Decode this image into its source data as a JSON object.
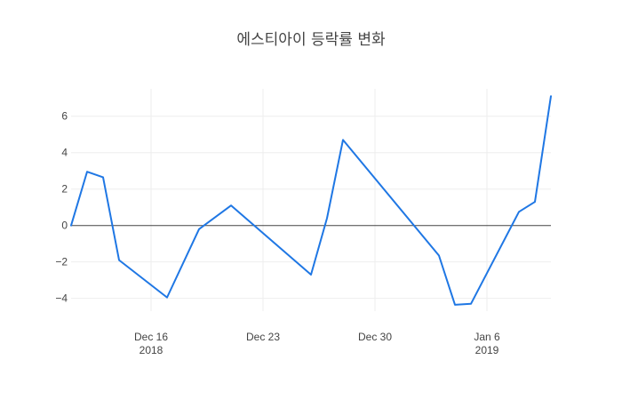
{
  "chart_data": {
    "type": "line",
    "title": "에스티아이 등락률 변화",
    "xlabel": "",
    "ylabel": "",
    "x": [
      "2018-12-13",
      "2018-12-14",
      "2018-12-15",
      "2018-12-16",
      "2018-12-17",
      "2018-12-18",
      "2018-12-19",
      "2018-12-20",
      "2018-12-21",
      "2018-12-22",
      "2018-12-23",
      "2018-12-24",
      "2018-12-25",
      "2018-12-26",
      "2018-12-27",
      "2018-12-28",
      "2018-12-29",
      "2018-12-30",
      "2018-12-31",
      "2019-01-01",
      "2019-01-02",
      "2019-01-03",
      "2019-01-04",
      "2019-01-05",
      "2019-01-06",
      "2019-01-07",
      "2019-01-08",
      "2019-01-09"
    ],
    "series": [
      {
        "values": [
          {
            "date": "2018-12-11",
            "y": 0.0
          },
          {
            "date": "2018-12-12",
            "y": 2.95
          },
          {
            "date": "2018-12-13",
            "y": 2.65
          },
          {
            "date": "2018-12-14",
            "y": -1.9
          },
          {
            "date": "2018-12-17",
            "y": -3.95
          },
          {
            "date": "2018-12-19",
            "y": -0.2
          },
          {
            "date": "2018-12-21",
            "y": 1.1
          },
          {
            "date": "2018-12-26",
            "y": -2.7
          },
          {
            "date": "2018-12-27",
            "y": 0.4
          },
          {
            "date": "2018-12-28",
            "y": 4.7
          },
          {
            "date": "2019-01-03",
            "y": -1.65
          },
          {
            "date": "2019-01-04",
            "y": -4.35
          },
          {
            "date": "2019-01-05",
            "y": -4.3
          },
          {
            "date": "2019-01-08",
            "y": 0.75
          },
          {
            "date": "2019-01-09",
            "y": 1.3
          },
          {
            "date": "2019-01-10",
            "y": 7.1
          }
        ],
        "color": "#1f77e4"
      }
    ],
    "ylim": [
      -4.7,
      7.5
    ],
    "y_ticks": [
      "6",
      "4",
      "2",
      "0",
      "−2",
      "−4"
    ],
    "x_ticks": [
      {
        "date": "2018-12-16",
        "label": "Dec 16",
        "year": "2018"
      },
      {
        "date": "2018-12-23",
        "label": "Dec 23",
        "year": ""
      },
      {
        "date": "2018-12-30",
        "label": "Dec 30",
        "year": ""
      },
      {
        "date": "2019-01-06",
        "label": "Jan 6",
        "year": "2019"
      }
    ],
    "grid": true,
    "zero_line": true
  }
}
